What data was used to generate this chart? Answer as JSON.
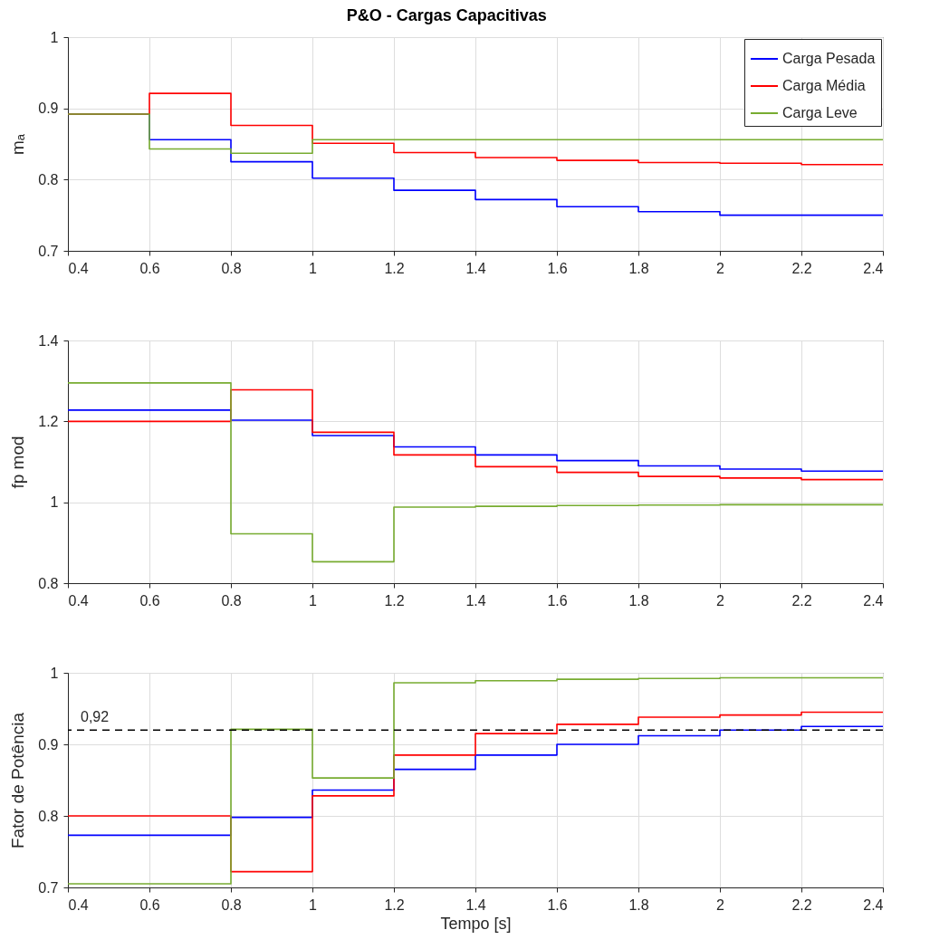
{
  "chart_data": [
    {
      "type": "step",
      "title": "P&O - Cargas Capacitivas",
      "ylabel": "mₐ",
      "x": [
        0.4,
        0.6,
        0.8,
        1.0,
        1.2,
        1.4,
        1.6,
        1.8,
        2.0,
        2.2,
        2.4
      ],
      "xlim": [
        0.4,
        2.4
      ],
      "xticks": [
        0.4,
        0.6,
        0.8,
        1,
        1.2,
        1.4,
        1.6,
        1.8,
        2,
        2.2,
        2.4
      ],
      "ylim": [
        0.7,
        1
      ],
      "yticks": [
        0.7,
        0.8,
        0.9,
        1
      ],
      "grid": true,
      "legend": "top right",
      "series": [
        {
          "name": "Carga Pesada",
          "color": "#0000ff",
          "values": [
            0.892,
            0.856,
            0.825,
            0.802,
            0.785,
            0.772,
            0.762,
            0.755,
            0.75,
            0.75,
            0.75
          ]
        },
        {
          "name": "Carga Média",
          "color": "#ff0000",
          "values": [
            0.892,
            0.921,
            0.876,
            0.851,
            0.838,
            0.831,
            0.827,
            0.824,
            0.823,
            0.821,
            0.821
          ]
        },
        {
          "name": "Carga Leve",
          "color": "#77ac30",
          "values": [
            0.892,
            0.843,
            0.837,
            0.856,
            0.856,
            0.856,
            0.856,
            0.856,
            0.856,
            0.856,
            0.856
          ]
        }
      ]
    },
    {
      "type": "step",
      "ylabel": "fp mod",
      "x": [
        0.4,
        0.6,
        0.8,
        1.0,
        1.2,
        1.4,
        1.6,
        1.8,
        2.0,
        2.2,
        2.4
      ],
      "xlim": [
        0.4,
        2.4
      ],
      "xticks": [
        0.4,
        0.6,
        0.8,
        1,
        1.2,
        1.4,
        1.6,
        1.8,
        2,
        2.2,
        2.4
      ],
      "ylim": [
        0.8,
        1.4
      ],
      "yticks": [
        0.8,
        1,
        1.2,
        1.4
      ],
      "grid": true,
      "series": [
        {
          "color": "#0000ff",
          "values": [
            1.228,
            1.228,
            1.203,
            1.165,
            1.137,
            1.117,
            1.103,
            1.09,
            1.082,
            1.077,
            1.077
          ]
        },
        {
          "color": "#ff0000",
          "values": [
            1.2,
            1.2,
            1.278,
            1.173,
            1.117,
            1.088,
            1.074,
            1.064,
            1.06,
            1.056,
            1.056
          ]
        },
        {
          "color": "#77ac30",
          "values": [
            1.295,
            1.295,
            0.922,
            0.853,
            0.988,
            0.99,
            0.992,
            0.993,
            0.994,
            0.994,
            0.994
          ]
        }
      ]
    },
    {
      "type": "step",
      "xlabel": "Tempo [s]",
      "ylabel": "Fator de Potência",
      "x": [
        0.4,
        0.6,
        0.8,
        1.0,
        1.2,
        1.4,
        1.6,
        1.8,
        2.0,
        2.2,
        2.4
      ],
      "xlim": [
        0.4,
        2.4
      ],
      "xticks": [
        0.4,
        0.6,
        0.8,
        1,
        1.2,
        1.4,
        1.6,
        1.8,
        2,
        2.2,
        2.4
      ],
      "ylim": [
        0.7,
        1
      ],
      "yticks": [
        0.7,
        0.8,
        0.9,
        1
      ],
      "grid": true,
      "ref_lines": [
        {
          "axis": "y",
          "value": 0.92,
          "label": "0,92",
          "color": "#000000",
          "line_style": "dashed"
        }
      ],
      "series": [
        {
          "color": "#0000ff",
          "values": [
            0.773,
            0.773,
            0.798,
            0.836,
            0.865,
            0.885,
            0.9,
            0.912,
            0.92,
            0.925,
            0.925
          ]
        },
        {
          "color": "#ff0000",
          "values": [
            0.8,
            0.8,
            0.722,
            0.828,
            0.885,
            0.915,
            0.928,
            0.938,
            0.941,
            0.945,
            0.945
          ]
        },
        {
          "color": "#77ac30",
          "values": [
            0.705,
            0.705,
            0.921,
            0.853,
            0.986,
            0.989,
            0.991,
            0.992,
            0.993,
            0.993,
            0.993
          ]
        }
      ]
    }
  ]
}
